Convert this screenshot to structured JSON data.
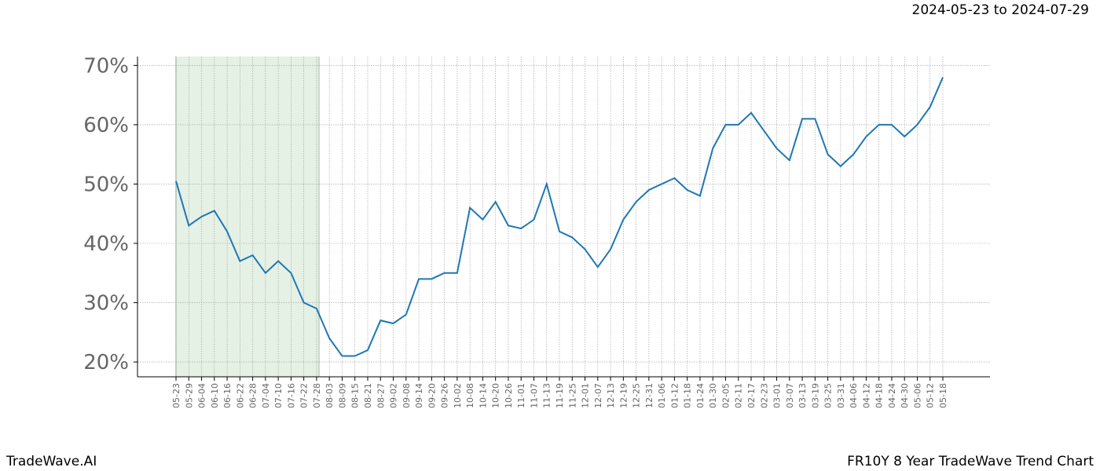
{
  "chart_data": {
    "type": "line",
    "title": "2024-05-23 to 2024-07-29",
    "footer_left": "TradeWave.AI",
    "footer_right": "FR10Y 8 Year TradeWave Trend Chart",
    "categories": [
      "05-23",
      "05-29",
      "06-04",
      "06-10",
      "06-16",
      "06-22",
      "06-28",
      "07-04",
      "07-10",
      "07-16",
      "07-22",
      "07-28",
      "08-03",
      "08-09",
      "08-15",
      "08-21",
      "08-27",
      "09-02",
      "09-08",
      "09-14",
      "09-20",
      "09-26",
      "10-02",
      "10-08",
      "10-14",
      "10-20",
      "10-26",
      "11-01",
      "11-07",
      "11-13",
      "11-19",
      "11-25",
      "12-01",
      "12-07",
      "12-13",
      "12-19",
      "12-25",
      "12-31",
      "01-06",
      "01-12",
      "01-18",
      "01-24",
      "01-30",
      "02-05",
      "02-11",
      "02-17",
      "02-23",
      "03-01",
      "03-07",
      "03-13",
      "03-19",
      "03-25",
      "03-31",
      "04-06",
      "04-12",
      "04-18",
      "04-24",
      "04-30",
      "05-06",
      "05-12",
      "05-18"
    ],
    "series": [
      {
        "color": "#1f77b4",
        "values": [
          50.5,
          43,
          44.5,
          45.5,
          42,
          37,
          38,
          35,
          37,
          35,
          30,
          29,
          24,
          21,
          21,
          22,
          27,
          26.5,
          28,
          34,
          34,
          35,
          35,
          46,
          44,
          47,
          43,
          42.5,
          44,
          50,
          42,
          41,
          39,
          36,
          39,
          44,
          47,
          49,
          50,
          51,
          49,
          48,
          56,
          60,
          60,
          62,
          59,
          56,
          54,
          61,
          61,
          55,
          53,
          55,
          58,
          60,
          60,
          58,
          60,
          63,
          68
        ]
      }
    ],
    "highlight": {
      "from": "05-23",
      "to": "07-28",
      "color": "#e5f1e5"
    },
    "ylim": [
      17.5,
      71.5
    ],
    "yticks": [
      {
        "value": 20,
        "label": "20%"
      },
      {
        "value": 30,
        "label": "30%"
      },
      {
        "value": 40,
        "label": "40%"
      },
      {
        "value": 50,
        "label": "50%"
      },
      {
        "value": 60,
        "label": "60%"
      },
      {
        "value": 70,
        "label": "70%"
      }
    ],
    "grid": true
  }
}
